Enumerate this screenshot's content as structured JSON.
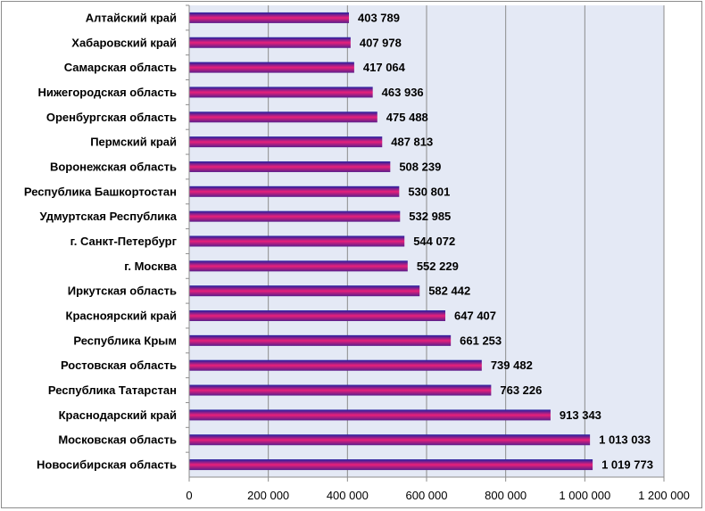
{
  "chart_data": {
    "type": "bar",
    "orientation": "horizontal",
    "categories": [
      "Алтайский край",
      "Хабаровский край",
      "Самарская область",
      "Нижегородская область",
      "Оренбургская область",
      "Пермский край",
      "Воронежская область",
      "Республика Башкортостан",
      "Удмуртская Республика",
      "г. Санкт-Петербург",
      "г. Москва",
      "Иркутская область",
      "Красноярский край",
      "Республика Крым",
      "Ростовская область",
      "Республика Татарстан",
      "Краснодарский край",
      "Московская область",
      "Новосибирская область"
    ],
    "values": [
      403789,
      407978,
      417064,
      463936,
      475488,
      487813,
      508239,
      530801,
      532985,
      544072,
      552229,
      582442,
      647407,
      661253,
      739482,
      763226,
      913343,
      1013033,
      1019773
    ],
    "value_labels": [
      "403 789",
      "407 978",
      "417 064",
      "463 936",
      "475 488",
      "487 813",
      "508 239",
      "530 801",
      "532 985",
      "544 072",
      "552 229",
      "582 442",
      "647 407",
      "661 253",
      "739 482",
      "763 226",
      "913 343",
      "1 013 033",
      "1 019 773"
    ],
    "xlim": [
      0,
      1200000
    ],
    "xticks": [
      0,
      200000,
      400000,
      600000,
      800000,
      1000000,
      1200000
    ],
    "xtick_labels": [
      "0",
      "200 000",
      "400 000",
      "600 000",
      "800 000",
      "1 000 000",
      "1 200 000"
    ],
    "title": "",
    "xlabel": "",
    "ylabel": "",
    "grid": "vertical",
    "legend": "none",
    "colors": {
      "plot_background": "#e4e9f5",
      "bar_top": "#2020a0",
      "bar_mid": "#e8207a",
      "bar_bottom": "#5a1e8c",
      "grid": "#8c8c8c"
    }
  }
}
